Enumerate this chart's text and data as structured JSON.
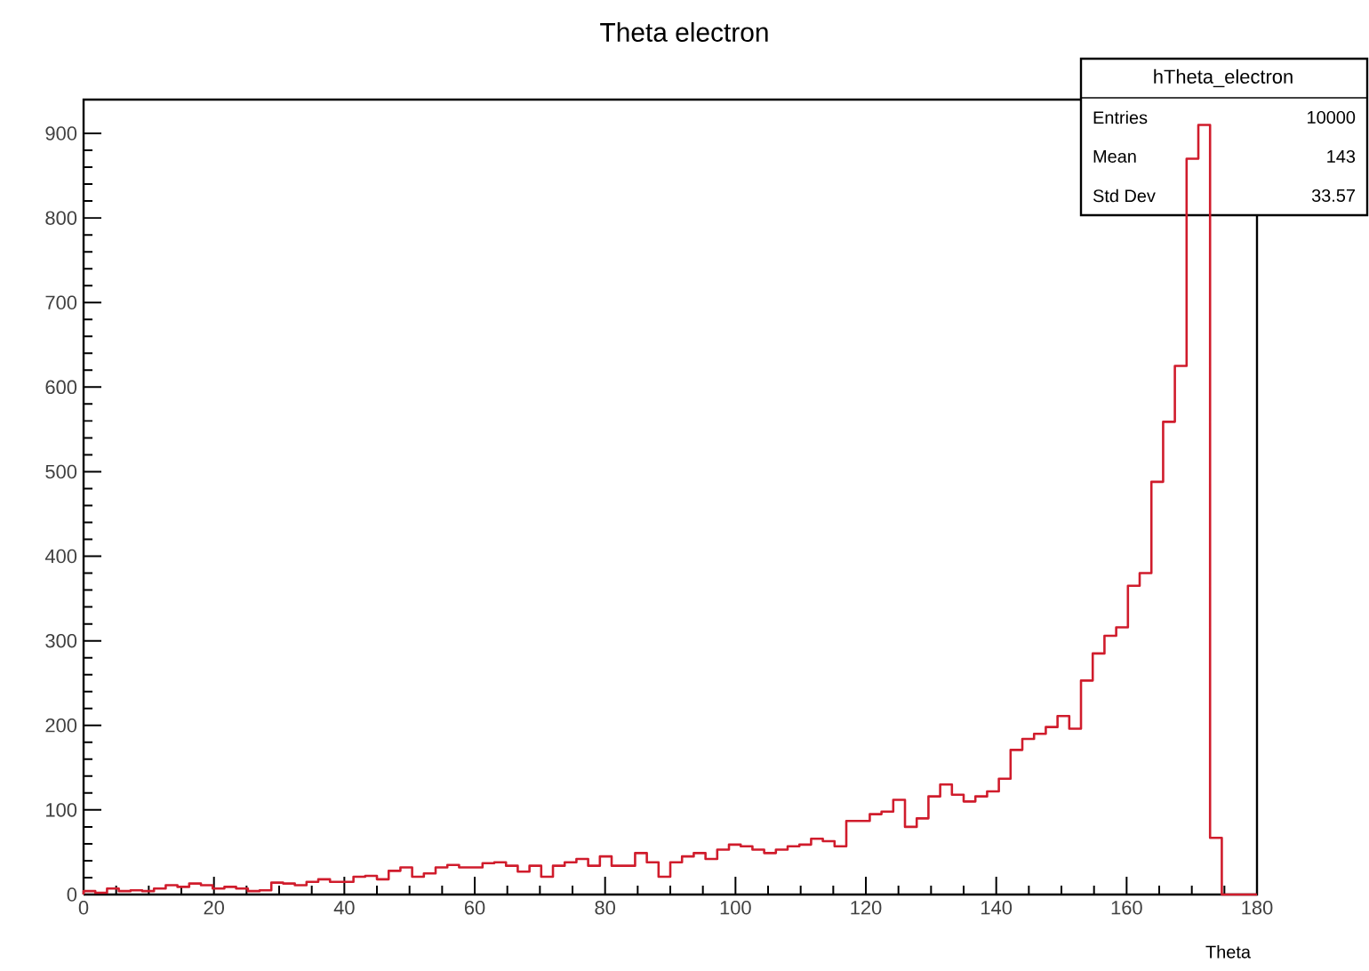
{
  "chart_data": {
    "type": "histogram",
    "title": "Theta electron",
    "xlabel": "Theta",
    "bins": [
      0,
      1.8,
      3.6,
      5.4,
      7.2,
      9,
      10.8,
      12.6,
      14.4,
      16.2,
      18,
      19.8,
      21.6,
      23.4,
      25.2,
      27,
      28.8,
      30.6,
      32.4,
      34.2,
      36,
      37.8,
      39.6,
      41.4,
      43.2,
      45,
      46.8,
      48.6,
      50.4,
      52.2,
      54,
      55.8,
      57.6,
      59.4,
      61.2,
      63,
      64.8,
      66.6,
      68.4,
      70.2,
      72,
      73.8,
      75.6,
      77.4,
      79.2,
      81,
      82.8,
      84.6,
      86.4,
      88.2,
      90,
      91.8,
      93.6,
      95.4,
      97.2,
      99,
      100.8,
      102.6,
      104.4,
      106.2,
      108,
      109.8,
      111.6,
      113.4,
      115.2,
      117,
      118.8,
      120.6,
      122.4,
      124.2,
      126,
      127.8,
      129.6,
      131.4,
      133.2,
      135,
      136.8,
      138.6,
      140.4,
      142.2,
      144,
      145.8,
      147.6,
      149.4,
      151.2,
      153,
      154.8,
      156.6,
      158.4,
      160.2,
      162,
      163.8,
      165.6,
      167.4,
      169.2,
      171,
      172.8,
      174.6,
      176.4,
      178.2,
      180
    ],
    "values": [
      4,
      2,
      7,
      4,
      5,
      4,
      7,
      11,
      9,
      13,
      11,
      7,
      9,
      7,
      4,
      5,
      14,
      13,
      11,
      15,
      18,
      15,
      15,
      21,
      22,
      18,
      28,
      32,
      21,
      25,
      32,
      35,
      32,
      32,
      37,
      38,
      34,
      27,
      34,
      21,
      34,
      38,
      42,
      34,
      45,
      34,
      34,
      49,
      38,
      21,
      38,
      45,
      49,
      42,
      53,
      59,
      57,
      53,
      49,
      53,
      57,
      59,
      66,
      63,
      57,
      87,
      87,
      95,
      98,
      112,
      80,
      90,
      116,
      130,
      118,
      110,
      116,
      122,
      137,
      171,
      184,
      190,
      198,
      211,
      196,
      253,
      285,
      306,
      316,
      365,
      380,
      488,
      559,
      625,
      870,
      910,
      67,
      0,
      0,
      0
    ],
    "color": "#d01c2c",
    "xlim": [
      0,
      180
    ],
    "ylim": [
      0,
      940
    ],
    "xticks": [
      0,
      20,
      40,
      60,
      80,
      100,
      120,
      140,
      160,
      180
    ],
    "yticks": [
      0,
      100,
      200,
      300,
      400,
      500,
      600,
      700,
      800,
      900
    ],
    "annotations": [
      "hTheta_electron",
      "Entries",
      "10000",
      "Mean",
      "143",
      "Std Dev",
      "33.57"
    ]
  }
}
